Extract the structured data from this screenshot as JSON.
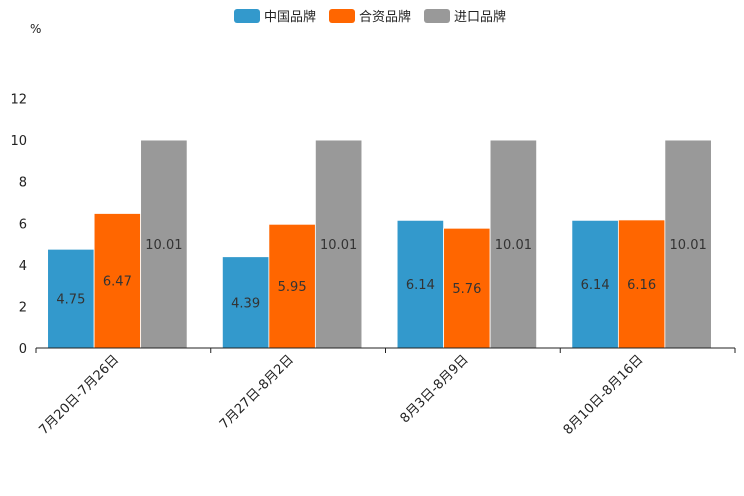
{
  "chart_data": {
    "type": "bar",
    "title": "",
    "xlabel": "",
    "ylabel": "%",
    "ylim": [
      0,
      12
    ],
    "yticks": [
      0,
      2,
      4,
      6,
      8,
      10,
      12
    ],
    "grid": false,
    "legend_position": "top-center",
    "categories": [
      "7月20日-7月26日",
      "7月27日-8月2日",
      "8月3日-8月9日",
      "8月10日-8月16日"
    ],
    "series": [
      {
        "name": "中国品牌",
        "color": "#3399cc",
        "values": [
          4.75,
          4.39,
          6.14,
          6.14
        ]
      },
      {
        "name": "合资品牌",
        "color": "#ff6600",
        "values": [
          6.47,
          5.95,
          5.76,
          6.16
        ]
      },
      {
        "name": "进口品牌",
        "color": "#999999",
        "values": [
          10.01,
          10.01,
          10.01,
          10.01
        ]
      }
    ]
  }
}
